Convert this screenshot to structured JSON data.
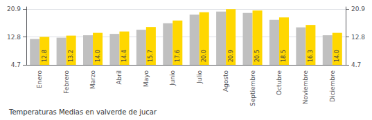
{
  "chart_data": {
    "type": "bar",
    "title": "Temperaturas Medias en valverde de jucar",
    "categories": [
      "Enero",
      "Febrero",
      "Marzo",
      "Abril",
      "Mayo",
      "Junio",
      "Julio",
      "Agosto",
      "Septiembre",
      "Octubre",
      "Noviembre",
      "Diciembre"
    ],
    "series": [
      {
        "color": "#C0C0C0",
        "values": [
          12.2,
          12.6,
          13.3,
          13.7,
          14.9,
          16.8,
          19.3,
          20.2,
          19.8,
          17.8,
          15.6,
          13.3
        ]
      },
      {
        "color": "#FFD700",
        "values": [
          12.8,
          13.2,
          14.0,
          14.4,
          15.7,
          17.6,
          20.0,
          20.9,
          20.5,
          18.5,
          16.3,
          14.0
        ],
        "data_labels": true,
        "value_labels": [
          "12.8",
          "13.2",
          "14.0",
          "14.4",
          "15.7",
          "17.6",
          "20.0",
          "20.9",
          "20.5",
          "18.5",
          "16.3",
          "14.0"
        ]
      }
    ],
    "ylim": [
      4.7,
      21.548
    ],
    "yticks": [
      4.7,
      12.8,
      20.9
    ],
    "y2lim": [
      4.7,
      21.548
    ],
    "y2ticks": [
      4.7,
      12.8,
      20.9
    ],
    "grid": true
  }
}
